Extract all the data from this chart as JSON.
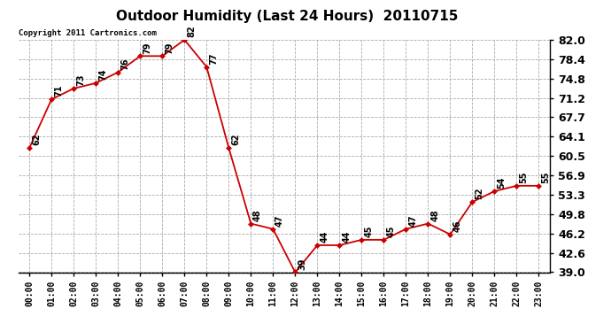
{
  "title": "Outdoor Humidity (Last 24 Hours)  20110715",
  "copyright_text": "Copyright 2011 Cartronics.com",
  "hours": [
    0,
    1,
    2,
    3,
    4,
    5,
    6,
    7,
    8,
    9,
    10,
    11,
    12,
    13,
    14,
    15,
    16,
    17,
    18,
    19,
    20,
    21,
    22,
    23
  ],
  "values": [
    62,
    71,
    73,
    74,
    76,
    79,
    79,
    82,
    77,
    62,
    48,
    47,
    39,
    44,
    44,
    45,
    45,
    47,
    48,
    46,
    52,
    54,
    55,
    55
  ],
  "xlabels": [
    "00:00",
    "01:00",
    "02:00",
    "03:00",
    "04:00",
    "05:00",
    "06:00",
    "07:00",
    "08:00",
    "09:00",
    "10:00",
    "11:00",
    "12:00",
    "13:00",
    "14:00",
    "15:00",
    "16:00",
    "17:00",
    "18:00",
    "19:00",
    "20:00",
    "21:00",
    "22:00",
    "23:00"
  ],
  "ylim": [
    39.0,
    82.0
  ],
  "yticks": [
    39.0,
    42.6,
    46.2,
    49.8,
    53.3,
    56.9,
    60.5,
    64.1,
    67.7,
    71.2,
    74.8,
    78.4,
    82.0
  ],
  "line_color": "#cc0000",
  "marker_color": "#cc0000",
  "bg_color": "#ffffff",
  "grid_color": "#aaaaaa",
  "title_fontsize": 11,
  "label_fontsize": 7,
  "annotation_fontsize": 7,
  "ytick_fontsize": 9
}
